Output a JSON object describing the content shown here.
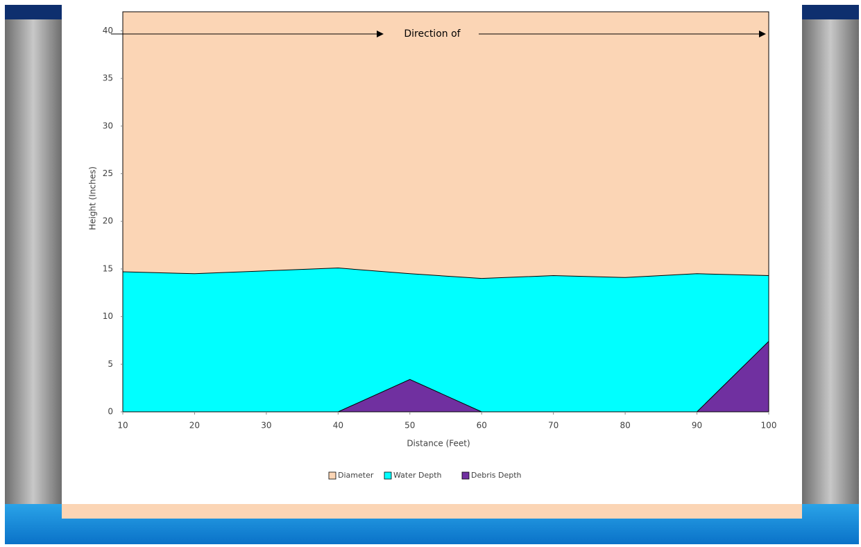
{
  "chart_data": {
    "type": "area",
    "annotation": "Direction of",
    "x_label": "Distance (Feet)",
    "y_label": "Height (Inches)",
    "x": [
      10,
      20,
      30,
      40,
      50,
      60,
      70,
      80,
      90,
      100
    ],
    "xlim": [
      10,
      100
    ],
    "xticks": [
      10,
      20,
      30,
      40,
      50,
      60,
      70,
      80,
      90,
      100
    ],
    "ylim": [
      0,
      42
    ],
    "yticks": [
      0,
      5,
      10,
      15,
      20,
      25,
      30,
      35,
      40
    ],
    "series": [
      {
        "name": "Diameter",
        "color": "#fbd5b5",
        "values": [
          42,
          42,
          42,
          42,
          42,
          42,
          42,
          42,
          42,
          42
        ]
      },
      {
        "name": "Water Depth",
        "color": "#00ffff",
        "values": [
          14.7,
          14.5,
          14.8,
          15.1,
          14.5,
          14.0,
          14.3,
          14.1,
          14.5,
          14.3
        ]
      },
      {
        "name": "Debris Depth",
        "color": "#7030a0",
        "values": [
          0,
          0,
          0,
          0,
          3.4,
          0,
          0,
          0,
          0,
          7.4
        ]
      }
    ]
  }
}
